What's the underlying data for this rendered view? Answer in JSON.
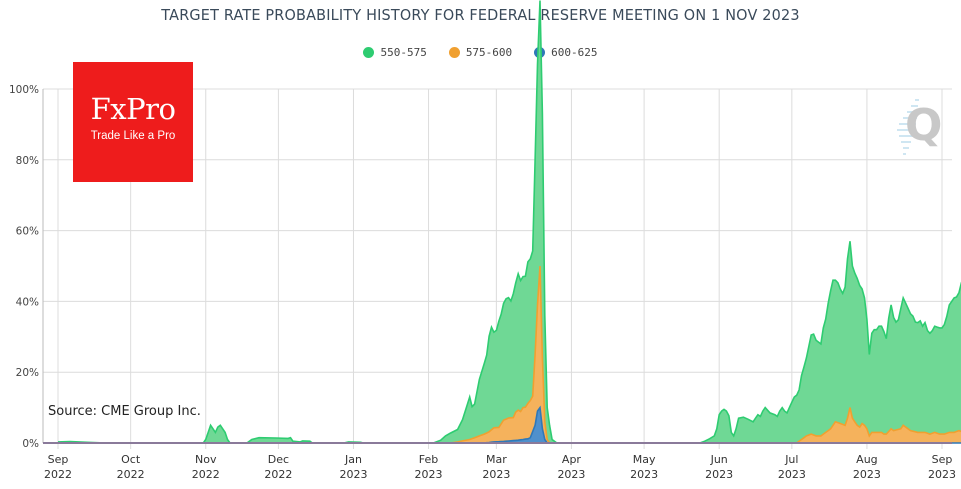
{
  "chart_data": {
    "type": "area",
    "stacked": true,
    "title": "TARGET RATE PROBABILITY HISTORY FOR FEDERAL RESERVE MEETING ON 1 NOV 2023",
    "xlabel": "",
    "ylabel": "",
    "ylim": [
      0,
      100
    ],
    "y_ticks": [
      "0%",
      "20%",
      "40%",
      "60%",
      "80%",
      "100%"
    ],
    "y_tick_values": [
      0,
      20,
      40,
      60,
      80,
      100
    ],
    "x_ticks": [
      {
        "month": "Sep",
        "year": "2022",
        "day": 0
      },
      {
        "month": "Oct",
        "year": "2022",
        "day": 30
      },
      {
        "month": "Nov",
        "year": "2022",
        "day": 61
      },
      {
        "month": "Dec",
        "year": "2022",
        "day": 91
      },
      {
        "month": "Jan",
        "year": "2023",
        "day": 122
      },
      {
        "month": "Feb",
        "year": "2023",
        "day": 153
      },
      {
        "month": "Mar",
        "year": "2023",
        "day": 181
      },
      {
        "month": "Apr",
        "year": "2023",
        "day": 212
      },
      {
        "month": "May",
        "year": "2023",
        "day": 242
      },
      {
        "month": "Jun",
        "year": "2023",
        "day": 273
      },
      {
        "month": "Jul",
        "year": "2023",
        "day": 303
      },
      {
        "month": "Aug",
        "year": "2023",
        "day": 334
      },
      {
        "month": "Sep",
        "year": "2023",
        "day": 365
      }
    ],
    "x_unit": "days since 1 Sep 2022",
    "grid": true,
    "legend_position": "top-center",
    "series": [
      {
        "name": "550-575",
        "color": "#2ecc71",
        "fill": "#6fd895",
        "points": [
          [
            0,
            0.3
          ],
          [
            5,
            0.4
          ],
          [
            12,
            0.2
          ],
          [
            20,
            0
          ],
          [
            60,
            0
          ],
          [
            61,
            1
          ],
          [
            62,
            3
          ],
          [
            63,
            5
          ],
          [
            64,
            4
          ],
          [
            65,
            3
          ],
          [
            66,
            4.5
          ],
          [
            67,
            5
          ],
          [
            68,
            4
          ],
          [
            69,
            3
          ],
          [
            70,
            1
          ],
          [
            71,
            0
          ],
          [
            78,
            0
          ],
          [
            80,
            1
          ],
          [
            83,
            1.5
          ],
          [
            90,
            1.4
          ],
          [
            95,
            1.3
          ],
          [
            96,
            1.5
          ],
          [
            97,
            0.5
          ],
          [
            100,
            0.3
          ],
          [
            101,
            0.6
          ],
          [
            104,
            0.5
          ],
          [
            105,
            0
          ],
          [
            118,
            0
          ],
          [
            120,
            0.3
          ],
          [
            125,
            0.2
          ],
          [
            126,
            0
          ],
          [
            155,
            0
          ],
          [
            158,
            0.8
          ],
          [
            160,
            2
          ],
          [
            162,
            2.8
          ],
          [
            165,
            3.5
          ],
          [
            167,
            6
          ],
          [
            169,
            10
          ],
          [
            170,
            12
          ],
          [
            171,
            9
          ],
          [
            172,
            9.5
          ],
          [
            174,
            16
          ],
          [
            176,
            20
          ],
          [
            177,
            22
          ],
          [
            178,
            27
          ],
          [
            179,
            29
          ],
          [
            180,
            27
          ],
          [
            181,
            27.5
          ],
          [
            182,
            30
          ],
          [
            183,
            31
          ],
          [
            184,
            33
          ],
          [
            185,
            34
          ],
          [
            186,
            34
          ],
          [
            187,
            33
          ],
          [
            188,
            35
          ],
          [
            189,
            36.5
          ],
          [
            190,
            38.5
          ],
          [
            191,
            37
          ],
          [
            192,
            37
          ],
          [
            193,
            37
          ],
          [
            194,
            40
          ],
          [
            195,
            40
          ],
          [
            196,
            41
          ],
          [
            197,
            55
          ],
          [
            198,
            68
          ],
          [
            199,
            75
          ],
          [
            200,
            69
          ],
          [
            201,
            30
          ],
          [
            202,
            9
          ],
          [
            203,
            5
          ],
          [
            204,
            1
          ],
          [
            206,
            0
          ],
          [
            265,
            0
          ],
          [
            267,
            0.5
          ],
          [
            269,
            1.2
          ],
          [
            271,
            2
          ],
          [
            272,
            4
          ],
          [
            273,
            8
          ],
          [
            274,
            9
          ],
          [
            275,
            9.5
          ],
          [
            276,
            9
          ],
          [
            277,
            7.7
          ],
          [
            278,
            3
          ],
          [
            279,
            2
          ],
          [
            280,
            4
          ],
          [
            281,
            7
          ],
          [
            283,
            7.3
          ],
          [
            285,
            6.7
          ],
          [
            287,
            6
          ],
          [
            288,
            7
          ],
          [
            289,
            8
          ],
          [
            290,
            7.5
          ],
          [
            291,
            9
          ],
          [
            292,
            10
          ],
          [
            294,
            8.5
          ],
          [
            296,
            8
          ],
          [
            297,
            7.5
          ],
          [
            298,
            9
          ],
          [
            299,
            10
          ],
          [
            300,
            9
          ],
          [
            301,
            8.5
          ],
          [
            302,
            10
          ],
          [
            303,
            11.5
          ],
          [
            304,
            13
          ],
          [
            305,
            13.5
          ],
          [
            306,
            14.5
          ],
          [
            307,
            18
          ],
          [
            308,
            20
          ],
          [
            309,
            22
          ],
          [
            310,
            25
          ],
          [
            311,
            28
          ],
          [
            312,
            28.5
          ],
          [
            313,
            27
          ],
          [
            314,
            26.5
          ],
          [
            315,
            26
          ],
          [
            316,
            30
          ],
          [
            317,
            32
          ],
          [
            318,
            36
          ],
          [
            319,
            39
          ],
          [
            320,
            41
          ],
          [
            321,
            40
          ],
          [
            322,
            39.5
          ],
          [
            323,
            38
          ],
          [
            324,
            37
          ],
          [
            325,
            39
          ],
          [
            326,
            45
          ],
          [
            327,
            47
          ],
          [
            328,
            43
          ],
          [
            329,
            42
          ],
          [
            330,
            41.5
          ],
          [
            331,
            40
          ],
          [
            332,
            38
          ],
          [
            333,
            36
          ],
          [
            334,
            31
          ],
          [
            335,
            23
          ],
          [
            336,
            28
          ],
          [
            337,
            29
          ],
          [
            338,
            29
          ],
          [
            339,
            30
          ],
          [
            340,
            30
          ],
          [
            341,
            29
          ],
          [
            342,
            27
          ],
          [
            343,
            32
          ],
          [
            344,
            35
          ],
          [
            345,
            32
          ],
          [
            346,
            30.5
          ],
          [
            347,
            31
          ],
          [
            348,
            34
          ],
          [
            349,
            36
          ],
          [
            350,
            35
          ],
          [
            351,
            34
          ],
          [
            352,
            33
          ],
          [
            353,
            32.5
          ],
          [
            354,
            31
          ],
          [
            355,
            31
          ],
          [
            356,
            31.5
          ],
          [
            357,
            30
          ],
          [
            358,
            31
          ],
          [
            359,
            29
          ],
          [
            360,
            28.5
          ],
          [
            361,
            29
          ],
          [
            362,
            30
          ],
          [
            363,
            30
          ],
          [
            364,
            30
          ],
          [
            365,
            30
          ],
          [
            366,
            31
          ],
          [
            367,
            33
          ],
          [
            368,
            36
          ],
          [
            369,
            37
          ],
          [
            370,
            38
          ],
          [
            371,
            38
          ],
          [
            372,
            39
          ],
          [
            373,
            42
          ],
          [
            374,
            44
          ],
          [
            375,
            40
          ],
          [
            376,
            38
          ],
          [
            377,
            42
          ],
          [
            378,
            44
          ],
          [
            379,
            45
          ],
          [
            380,
            46
          ],
          [
            381,
            48
          ],
          [
            382,
            50
          ],
          [
            383,
            52
          ],
          [
            384,
            48
          ],
          [
            385,
            53
          ],
          [
            386,
            55
          ],
          [
            387,
            56
          ],
          [
            388,
            58
          ],
          [
            389,
            60
          ],
          [
            390,
            62
          ],
          [
            391,
            63
          ],
          [
            392,
            52
          ],
          [
            393,
            48
          ]
        ]
      },
      {
        "name": "575-600",
        "color": "#f0a030",
        "fill": "#f5b25c",
        "points": [
          [
            0,
            0
          ],
          [
            162,
            0
          ],
          [
            165,
            0.3
          ],
          [
            170,
            1
          ],
          [
            174,
            2
          ],
          [
            176,
            2.5
          ],
          [
            178,
            3
          ],
          [
            180,
            4
          ],
          [
            182,
            4
          ],
          [
            184,
            6
          ],
          [
            186,
            6.5
          ],
          [
            188,
            6.5
          ],
          [
            189,
            8
          ],
          [
            190,
            8.5
          ],
          [
            191,
            8
          ],
          [
            192,
            9
          ],
          [
            193,
            9
          ],
          [
            194,
            10
          ],
          [
            195,
            10.5
          ],
          [
            196,
            10
          ],
          [
            197,
            20
          ],
          [
            198,
            30
          ],
          [
            199,
            40
          ],
          [
            200,
            20
          ],
          [
            201,
            5
          ],
          [
            202,
            1
          ],
          [
            203,
            0
          ],
          [
            305,
            0
          ],
          [
            307,
            1
          ],
          [
            309,
            2
          ],
          [
            311,
            2.5
          ],
          [
            313,
            2
          ],
          [
            315,
            2
          ],
          [
            317,
            3
          ],
          [
            319,
            4
          ],
          [
            320,
            5
          ],
          [
            321,
            6
          ],
          [
            323,
            5.5
          ],
          [
            325,
            5
          ],
          [
            326,
            7
          ],
          [
            327,
            10
          ],
          [
            328,
            7
          ],
          [
            329,
            6
          ],
          [
            330,
            5
          ],
          [
            331,
            4.5
          ],
          [
            332,
            5.5
          ],
          [
            333,
            5
          ],
          [
            334,
            4
          ],
          [
            335,
            2
          ],
          [
            336,
            3
          ],
          [
            337,
            3
          ],
          [
            340,
            3
          ],
          [
            341,
            2.5
          ],
          [
            342,
            2.5
          ],
          [
            344,
            4
          ],
          [
            345,
            3.5
          ],
          [
            348,
            4
          ],
          [
            349,
            5
          ],
          [
            350,
            4.5
          ],
          [
            352,
            3.5
          ],
          [
            355,
            3
          ],
          [
            358,
            3
          ],
          [
            360,
            2.5
          ],
          [
            362,
            3
          ],
          [
            364,
            2.5
          ],
          [
            366,
            2.5
          ],
          [
            368,
            3
          ],
          [
            370,
            3
          ],
          [
            372,
            3.5
          ],
          [
            374,
            3
          ],
          [
            376,
            4
          ],
          [
            378,
            3.5
          ],
          [
            380,
            4
          ],
          [
            382,
            5
          ],
          [
            384,
            4.5
          ],
          [
            385,
            7
          ],
          [
            386,
            8.5
          ],
          [
            387,
            9.5
          ],
          [
            389,
            11
          ],
          [
            390,
            11.5
          ],
          [
            391,
            12
          ],
          [
            392,
            8
          ],
          [
            393,
            5
          ]
        ]
      },
      {
        "name": "600-625",
        "color": "#2f78b8",
        "fill": "#4f90cc",
        "points": [
          [
            0,
            0
          ],
          [
            176,
            0
          ],
          [
            180,
            0.3
          ],
          [
            185,
            0.5
          ],
          [
            190,
            0.8
          ],
          [
            194,
            1.2
          ],
          [
            195,
            1.5
          ],
          [
            197,
            5
          ],
          [
            198,
            9
          ],
          [
            199,
            10
          ],
          [
            200,
            4
          ],
          [
            201,
            1
          ],
          [
            202,
            0
          ],
          [
            393,
            0
          ]
        ]
      }
    ]
  },
  "header": {
    "title": "TARGET RATE PROBABILITY HISTORY FOR FEDERAL RESERVE MEETING ON 1 NOV 2023"
  },
  "legend": [
    {
      "label": "550-575",
      "color": "#2ecc71"
    },
    {
      "label": "575-600",
      "color": "#f0a030"
    },
    {
      "label": "600-625",
      "color": "#2f78b8"
    }
  ],
  "logo": {
    "brand": "FxPro",
    "tagline": "Trade Like a Pro",
    "bg_color": "#ee1c1c"
  },
  "watermark": {
    "glyph": "Q"
  },
  "source": "Source: CME Group Inc."
}
